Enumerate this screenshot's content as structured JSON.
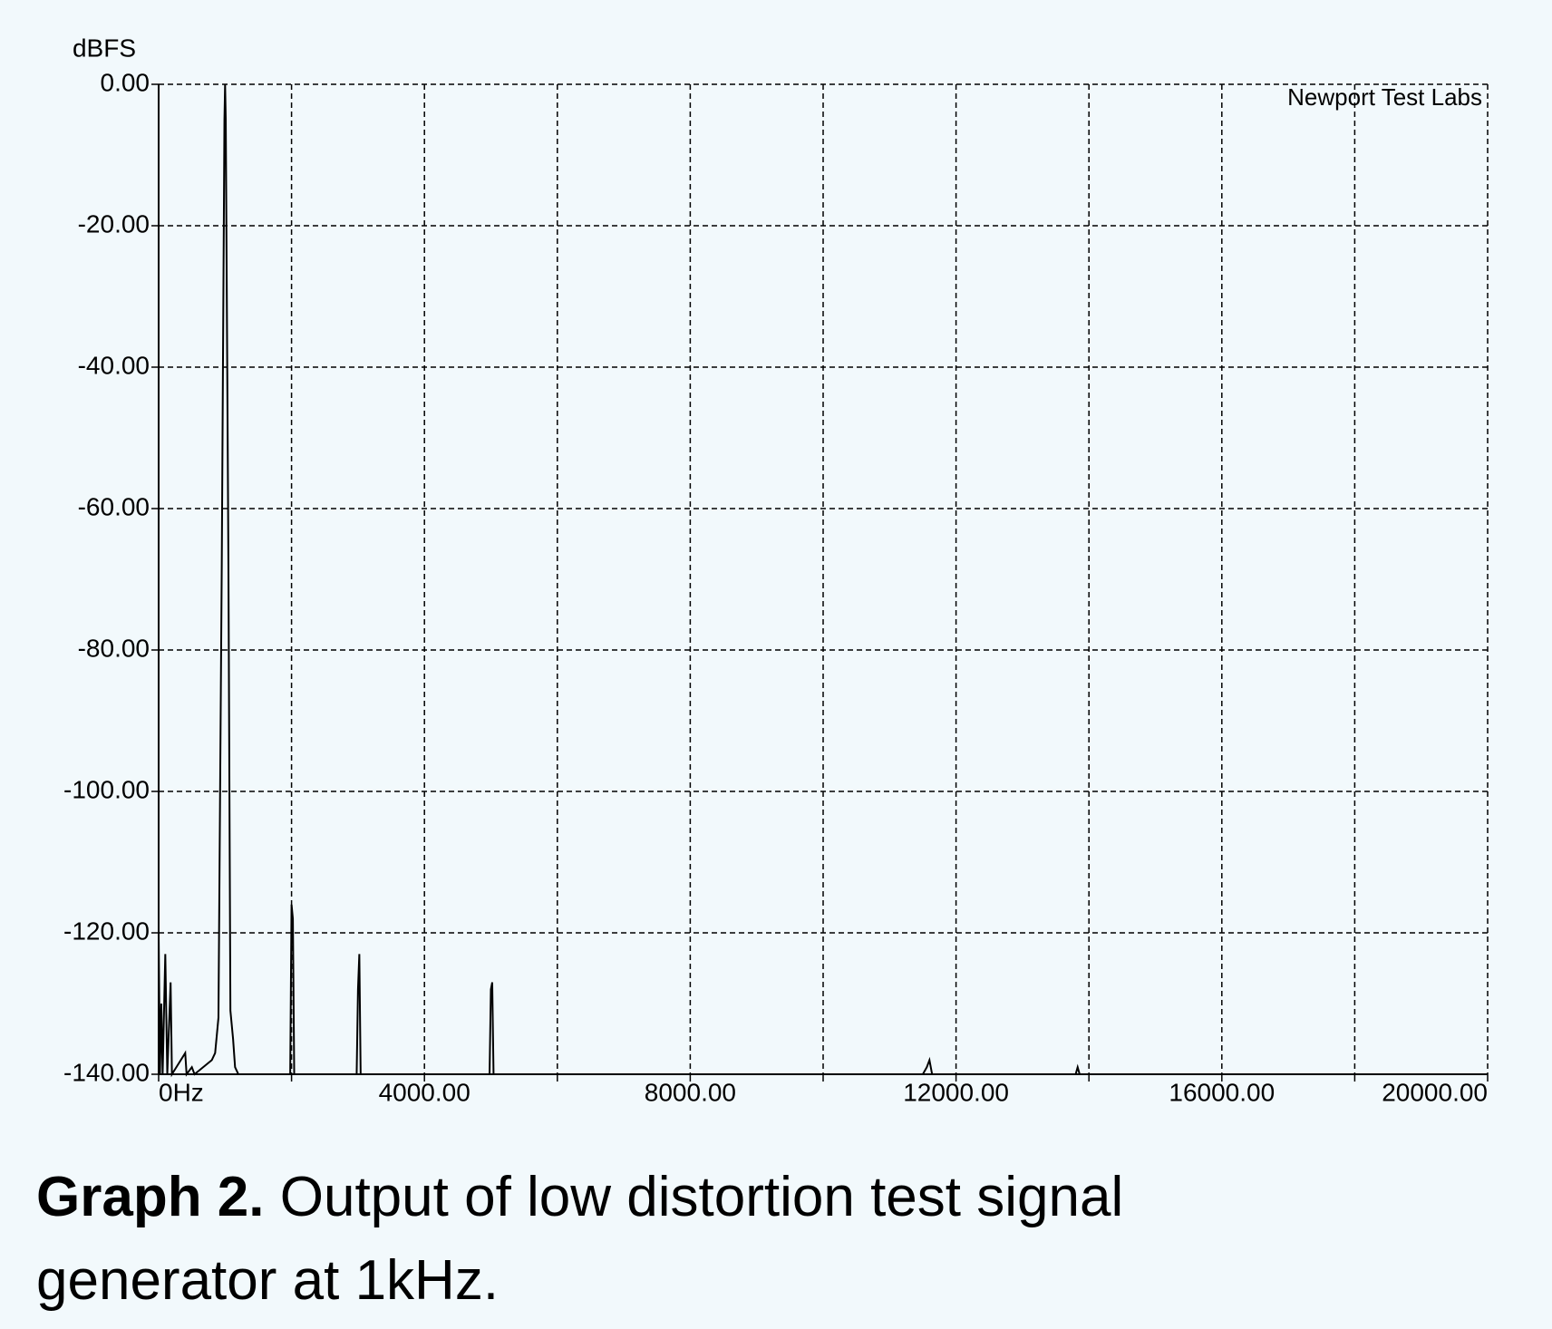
{
  "chart_data": {
    "type": "line",
    "y_label": "dBFS",
    "annotation": "Newport Test Labs",
    "color": "#000000",
    "grid": true,
    "xlim": [
      0,
      20000
    ],
    "ylim": [
      -140,
      0
    ],
    "xticks": [
      {
        "value": 0,
        "label": "0Hz"
      },
      {
        "value": 4000,
        "label": "4000.00"
      },
      {
        "value": 8000,
        "label": "8000.00"
      },
      {
        "value": 12000,
        "label": "12000.00"
      },
      {
        "value": 16000,
        "label": "16000.00"
      },
      {
        "value": 20000,
        "label": "20000.00"
      }
    ],
    "xminor_ticks": [
      2000,
      6000,
      10000,
      14000,
      18000
    ],
    "yticks": [
      {
        "value": 0,
        "label": "0.00"
      },
      {
        "value": -20,
        "label": "-20.00"
      },
      {
        "value": -40,
        "label": "-40.00"
      },
      {
        "value": -60,
        "label": "-60.00"
      },
      {
        "value": -80,
        "label": "-80.00"
      },
      {
        "value": -100,
        "label": "-100.00"
      },
      {
        "value": -120,
        "label": "-120.00"
      },
      {
        "value": -140,
        "label": "-140.00"
      }
    ],
    "x": [
      0,
      20,
      40,
      60,
      100,
      130,
      180,
      200,
      400,
      420,
      500,
      540,
      800,
      850,
      900,
      950,
      990,
      1000,
      1010,
      1050,
      1080,
      1120,
      1150,
      1200,
      1980,
      2000,
      2020,
      2040,
      2980,
      3000,
      3020,
      3040,
      4980,
      5000,
      5020,
      5040,
      11500,
      11560,
      11600,
      11640,
      13800,
      13830,
      13860,
      20000
    ],
    "values": [
      -120,
      -140,
      -130,
      -140,
      -123,
      -140,
      -127,
      -140,
      -137,
      -140,
      -139,
      -140,
      -138,
      -137,
      -132,
      -68,
      -5,
      0,
      -5,
      -68,
      -131,
      -135,
      -139,
      -140,
      -140,
      -116,
      -118,
      -140,
      -140,
      -128,
      -123,
      -140,
      -140,
      -128,
      -127,
      -140,
      -140,
      -139,
      -138,
      -140,
      -140,
      -139,
      -140,
      -140
    ]
  },
  "caption": {
    "label": "Graph 2.",
    "text": "Output of low distortion test signal generator at 1kHz."
  }
}
